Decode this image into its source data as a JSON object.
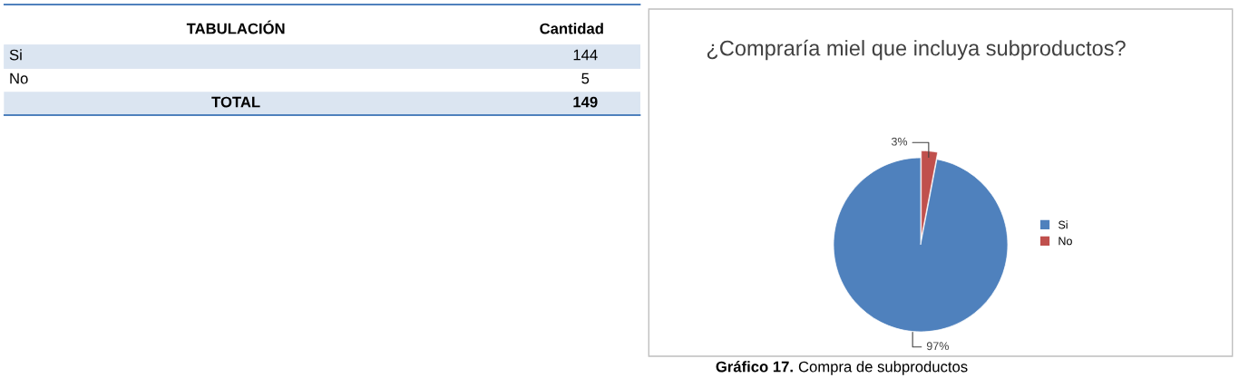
{
  "chart_data": [
    {
      "type": "other",
      "categories": [
        "Si",
        "No"
      ],
      "values": [
        144,
        5
      ],
      "data_labels": true,
      "totals": [
        "149"
      ],
      "annotations": [
        "TABULACIÓN",
        "Cantidad",
        "TOTAL"
      ]
    },
    {
      "type": "pie",
      "title": "¿Compraría miel que incluya subproductos?",
      "categories": [
        "Si",
        "No"
      ],
      "values": [
        97,
        3
      ],
      "colors": [
        "#4f81bd",
        "#c0504d"
      ],
      "value_labels": [
        "97%",
        "3%"
      ],
      "legend": "right",
      "annotations": [
        "Gráfico 17.",
        "Compra de subproductos"
      ]
    }
  ]
}
